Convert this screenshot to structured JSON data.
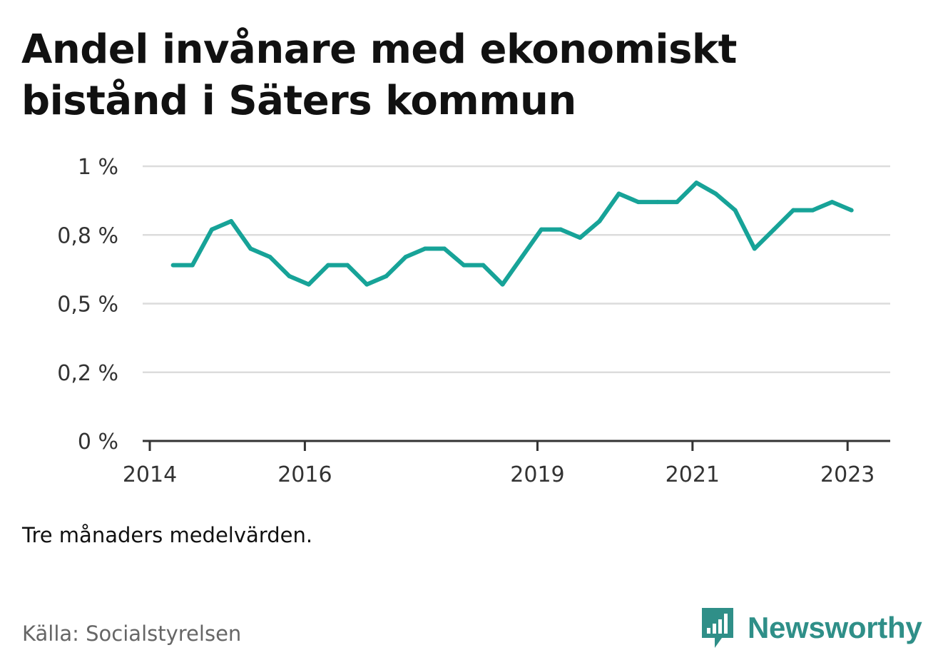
{
  "title": "Andel invånare med ekonomiskt bistånd i Säters kommun",
  "note": "Tre månaders medelvärden.",
  "source": "Källa: Socialstyrelsen",
  "brand": {
    "name": "Newsworthy",
    "icon": "newsworthy-logo-icon",
    "color": "#2f8f88"
  },
  "chart_data": {
    "type": "line",
    "title": "Andel invånare med ekonomiskt bistånd i Säters kommun",
    "xlabel": "",
    "ylabel": "",
    "grid": true,
    "line_color": "#17a398",
    "xlim": [
      2014,
      2023.55
    ],
    "ylim": [
      0,
      1
    ],
    "yticks": [
      {
        "value": 0,
        "label": "0 %"
      },
      {
        "value": 0.25,
        "label": "0,2 %"
      },
      {
        "value": 0.5,
        "label": "0,5 %"
      },
      {
        "value": 0.75,
        "label": "0,8 %"
      },
      {
        "value": 1,
        "label": "1 %"
      }
    ],
    "xticks": [
      {
        "value": 2014,
        "label": "2014"
      },
      {
        "value": 2016,
        "label": "2016"
      },
      {
        "value": 2019,
        "label": "2019"
      },
      {
        "value": 2021,
        "label": "2021"
      },
      {
        "value": 2023,
        "label": "2023"
      }
    ],
    "x": [
      2014.3,
      2014.55,
      2014.8,
      2015.05,
      2015.3,
      2015.55,
      2015.8,
      2016.05,
      2016.3,
      2016.55,
      2016.8,
      2017.05,
      2017.3,
      2017.55,
      2017.8,
      2018.05,
      2018.3,
      2018.55,
      2018.8,
      2019.05,
      2019.3,
      2019.55,
      2019.8,
      2020.05,
      2020.3,
      2020.55,
      2020.8,
      2021.05,
      2021.3,
      2021.55,
      2021.8,
      2022.05,
      2022.3,
      2022.55,
      2022.8,
      2023.05
    ],
    "series": [
      {
        "values": [
          0.64,
          0.64,
          0.77,
          0.8,
          0.7,
          0.67,
          0.6,
          0.57,
          0.64,
          0.64,
          0.57,
          0.6,
          0.67,
          0.7,
          0.7,
          0.64,
          0.64,
          0.57,
          0.67,
          0.77,
          0.77,
          0.74,
          0.8,
          0.9,
          0.87,
          0.87,
          0.87,
          0.94,
          0.9,
          0.84,
          0.7,
          0.77,
          0.84,
          0.84,
          0.87,
          0.84
        ]
      }
    ]
  }
}
